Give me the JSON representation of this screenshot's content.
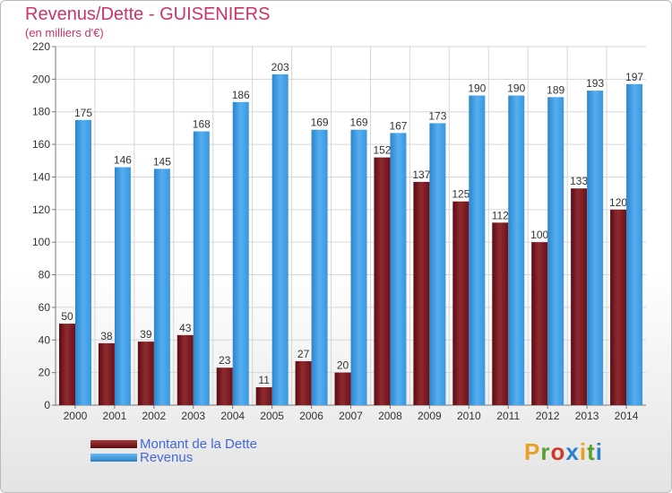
{
  "chart_data": {
    "type": "bar",
    "title": "Revenus/Dette - GUISENIERS",
    "subtitle": "(en milliers d'€)",
    "categories": [
      "2000",
      "2001",
      "2002",
      "2003",
      "2004",
      "2005",
      "2006",
      "2007",
      "2008",
      "2009",
      "2010",
      "2011",
      "2012",
      "2013",
      "2014"
    ],
    "series": [
      {
        "name": "Montant de la Dette",
        "color": "#7a1a1f",
        "values": [
          50,
          38,
          39,
          43,
          23,
          11,
          27,
          20,
          152,
          137,
          125,
          112,
          100,
          133,
          120
        ]
      },
      {
        "name": "Revenus",
        "color": "#3d9be0",
        "values": [
          175,
          146,
          145,
          168,
          186,
          203,
          169,
          169,
          167,
          173,
          190,
          190,
          189,
          193,
          197
        ]
      }
    ],
    "ylim": [
      0,
      220
    ],
    "yticks": [
      0,
      20,
      40,
      60,
      80,
      100,
      120,
      140,
      160,
      180,
      200,
      220
    ],
    "grid": true,
    "legend_position": "bottom-left"
  },
  "logo": {
    "text": "Proxiti"
  }
}
